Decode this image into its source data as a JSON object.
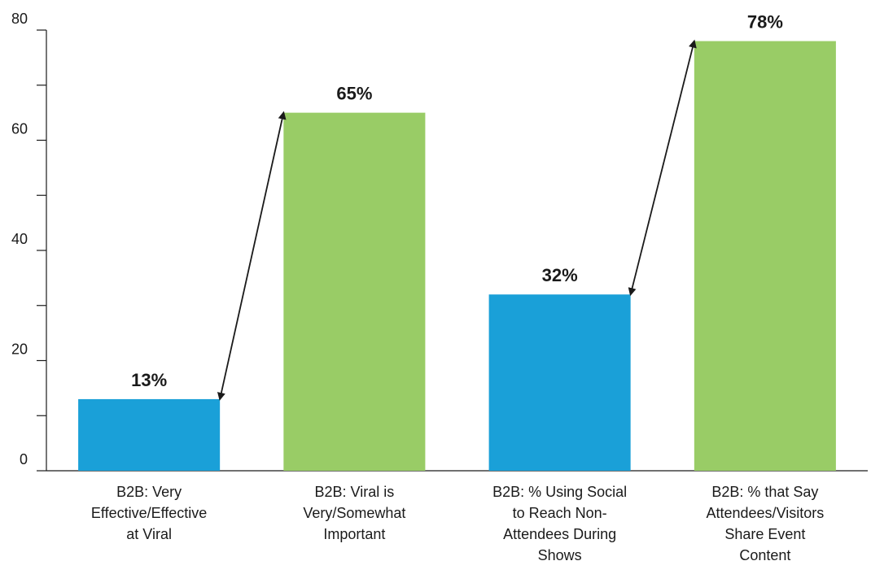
{
  "chart_data": {
    "type": "bar",
    "categories": [
      [
        "B2B: Very",
        "Effective/Effective",
        "at Viral"
      ],
      [
        "B2B: Viral is",
        "Very/Somewhat",
        "Important"
      ],
      [
        "B2B: % Using Social",
        "to Reach Non-",
        "Attendees During",
        "Shows"
      ],
      [
        "B2B: % that Say",
        "Attendees/Visitors",
        "Share Event",
        "Content"
      ]
    ],
    "values": [
      13,
      65,
      32,
      78
    ],
    "data_labels": [
      "13%",
      "65%",
      "32%",
      "78%"
    ],
    "bar_colors": [
      "#1aa0d8",
      "#99cc66",
      "#1aa0d8",
      "#99cc66"
    ],
    "ylim": [
      0,
      80
    ],
    "y_labeled_ticks": [
      0,
      20,
      40,
      60,
      80
    ],
    "y_minor_ticks": [
      10,
      30,
      50,
      70
    ],
    "title": "",
    "xlabel": "",
    "ylabel": "",
    "grid": false,
    "arrows": [
      {
        "from_bar": 0,
        "to_bar": 1
      },
      {
        "from_bar": 2,
        "to_bar": 3
      }
    ]
  }
}
